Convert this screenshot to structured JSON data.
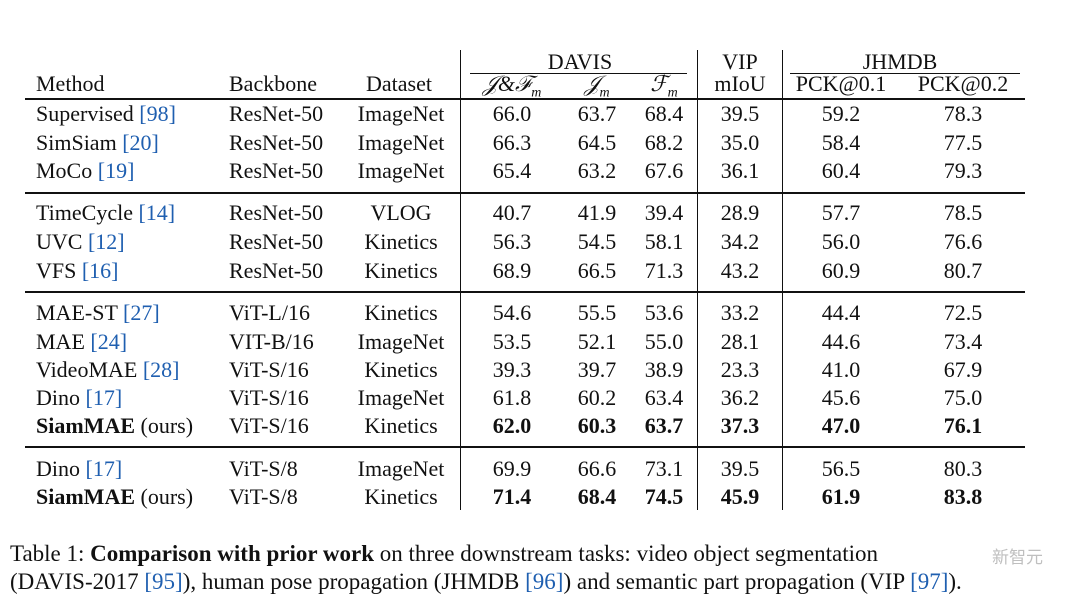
{
  "header": {
    "groups": {
      "davis": "DAVIS",
      "vip": "VIP",
      "jhmdb": "JHMDB"
    },
    "columns": {
      "method": "Method",
      "backbone": "Backbone",
      "dataset": "Dataset",
      "jf": "𝒥&ℱ",
      "jf_sub": "m",
      "j": "𝒥",
      "j_sub": "m",
      "f": "ℱ",
      "f_sub": "m",
      "miou": "mIoU",
      "pck01": "PCK@0.1",
      "pck02": "PCK@0.2"
    }
  },
  "rows": [
    {
      "name": "Supervised",
      "cite": "[98]",
      "suffix": "",
      "backbone": "ResNet-50",
      "dataset": "ImageNet",
      "jf": "66.0",
      "j": "63.7",
      "f": "68.4",
      "miou": "39.5",
      "pck01": "59.2",
      "pck02": "78.3",
      "bold": false
    },
    {
      "name": "SimSiam",
      "cite": "[20]",
      "suffix": "",
      "backbone": "ResNet-50",
      "dataset": "ImageNet",
      "jf": "66.3",
      "j": "64.5",
      "f": "68.2",
      "miou": "35.0",
      "pck01": "58.4",
      "pck02": "77.5",
      "bold": false
    },
    {
      "name": "MoCo",
      "cite": "[19]",
      "suffix": "",
      "backbone": "ResNet-50",
      "dataset": "ImageNet",
      "jf": "65.4",
      "j": "63.2",
      "f": "67.6",
      "miou": "36.1",
      "pck01": "60.4",
      "pck02": "79.3",
      "bold": false
    },
    {
      "name": "TimeCycle",
      "cite": "[14]",
      "suffix": "",
      "backbone": "ResNet-50",
      "dataset": "VLOG",
      "jf": "40.7",
      "j": "41.9",
      "f": "39.4",
      "miou": "28.9",
      "pck01": "57.7",
      "pck02": "78.5",
      "bold": false
    },
    {
      "name": "UVC",
      "cite": "[12]",
      "suffix": "",
      "backbone": "ResNet-50",
      "dataset": "Kinetics",
      "jf": "56.3",
      "j": "54.5",
      "f": "58.1",
      "miou": "34.2",
      "pck01": "56.0",
      "pck02": "76.6",
      "bold": false
    },
    {
      "name": "VFS",
      "cite": "[16]",
      "suffix": "",
      "backbone": "ResNet-50",
      "dataset": "Kinetics",
      "jf": "68.9",
      "j": "66.5",
      "f": "71.3",
      "miou": "43.2",
      "pck01": "60.9",
      "pck02": "80.7",
      "bold": false
    },
    {
      "name": "MAE-ST",
      "cite": "[27]",
      "suffix": "",
      "backbone": "ViT-L/16",
      "dataset": "Kinetics",
      "jf": "54.6",
      "j": "55.5",
      "f": "53.6",
      "miou": "33.2",
      "pck01": "44.4",
      "pck02": "72.5",
      "bold": false
    },
    {
      "name": "MAE",
      "cite": "[24]",
      "suffix": "",
      "backbone": "VIT-B/16",
      "dataset": "ImageNet",
      "jf": "53.5",
      "j": "52.1",
      "f": "55.0",
      "miou": "28.1",
      "pck01": "44.6",
      "pck02": "73.4",
      "bold": false
    },
    {
      "name": "VideoMAE",
      "cite": "[28]",
      "suffix": "",
      "backbone": "ViT-S/16",
      "dataset": "Kinetics",
      "jf": "39.3",
      "j": "39.7",
      "f": "38.9",
      "miou": "23.3",
      "pck01": "41.0",
      "pck02": "67.9",
      "bold": false
    },
    {
      "name": "Dino",
      "cite": "[17]",
      "suffix": "",
      "backbone": "ViT-S/16",
      "dataset": "ImageNet",
      "jf": "61.8",
      "j": "60.2",
      "f": "63.4",
      "miou": "36.2",
      "pck01": "45.6",
      "pck02": "75.0",
      "bold": false
    },
    {
      "name": "SiamMAE",
      "cite": "",
      "suffix": " (ours)",
      "backbone": "ViT-S/16",
      "dataset": "Kinetics",
      "jf": "62.0",
      "j": "60.3",
      "f": "63.7",
      "miou": "37.3",
      "pck01": "47.0",
      "pck02": "76.1",
      "bold": true
    },
    {
      "name": "Dino",
      "cite": "[17]",
      "suffix": "",
      "backbone": "ViT-S/8",
      "dataset": "ImageNet",
      "jf": "69.9",
      "j": "66.6",
      "f": "73.1",
      "miou": "39.5",
      "pck01": "56.5",
      "pck02": "80.3",
      "bold": false
    },
    {
      "name": "SiamMAE",
      "cite": "",
      "suffix": " (ours)",
      "backbone": "ViT-S/8",
      "dataset": "Kinetics",
      "jf": "71.4",
      "j": "68.4",
      "f": "74.5",
      "miou": "45.9",
      "pck01": "61.9",
      "pck02": "83.8",
      "bold": true
    }
  ],
  "caption": {
    "label": "Table 1:",
    "bold_text": "Comparison with prior work",
    "text1": " on three downstream tasks: video object segmentation",
    "text2": "(DAVIS-2017 ",
    "cite_davis": "[95]",
    "text3": "), human pose propagation (JHMDB ",
    "cite_jhmdb": "[96]",
    "text4": ") and semantic part propagation (VIP ",
    "cite_vip": "[97]",
    "text5": ")."
  },
  "watermark": "新智元"
}
